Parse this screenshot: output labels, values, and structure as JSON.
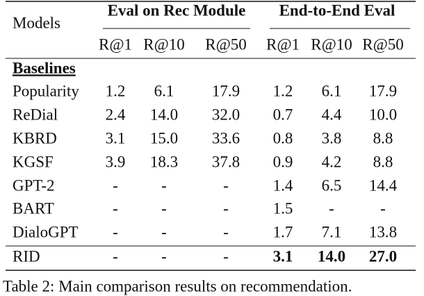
{
  "table": {
    "corner": "Models",
    "groups": [
      "Eval on Rec Module",
      "End-to-End Eval"
    ],
    "columns": [
      "R@1",
      "R@10",
      "R@50",
      "R@1",
      "R@10",
      "R@50"
    ],
    "section": "Baselines",
    "rows": [
      [
        "Popularity",
        "1.2",
        "6.1",
        "17.9",
        "1.2",
        "6.1",
        "17.9"
      ],
      [
        "ReDial",
        "2.4",
        "14.0",
        "32.0",
        "0.7",
        "4.4",
        "10.0"
      ],
      [
        "KBRD",
        "3.1",
        "15.0",
        "33.6",
        "0.8",
        "3.8",
        "8.8"
      ],
      [
        "KGSF",
        "3.9",
        "18.3",
        "37.8",
        "0.9",
        "4.2",
        "8.8"
      ],
      [
        "GPT-2",
        "-",
        "-",
        "-",
        "1.4",
        "6.5",
        "14.4"
      ],
      [
        "BART",
        "-",
        "-",
        "-",
        "1.5",
        "-",
        "-"
      ],
      [
        "DialoGPT",
        "-",
        "-",
        "-",
        "1.7",
        "7.1",
        "13.8"
      ],
      [
        "RID",
        "-",
        "-",
        "-",
        "3.1",
        "14.0",
        "27.0"
      ]
    ]
  },
  "caption": "Table 2:  Main comparison results on recommendation."
}
